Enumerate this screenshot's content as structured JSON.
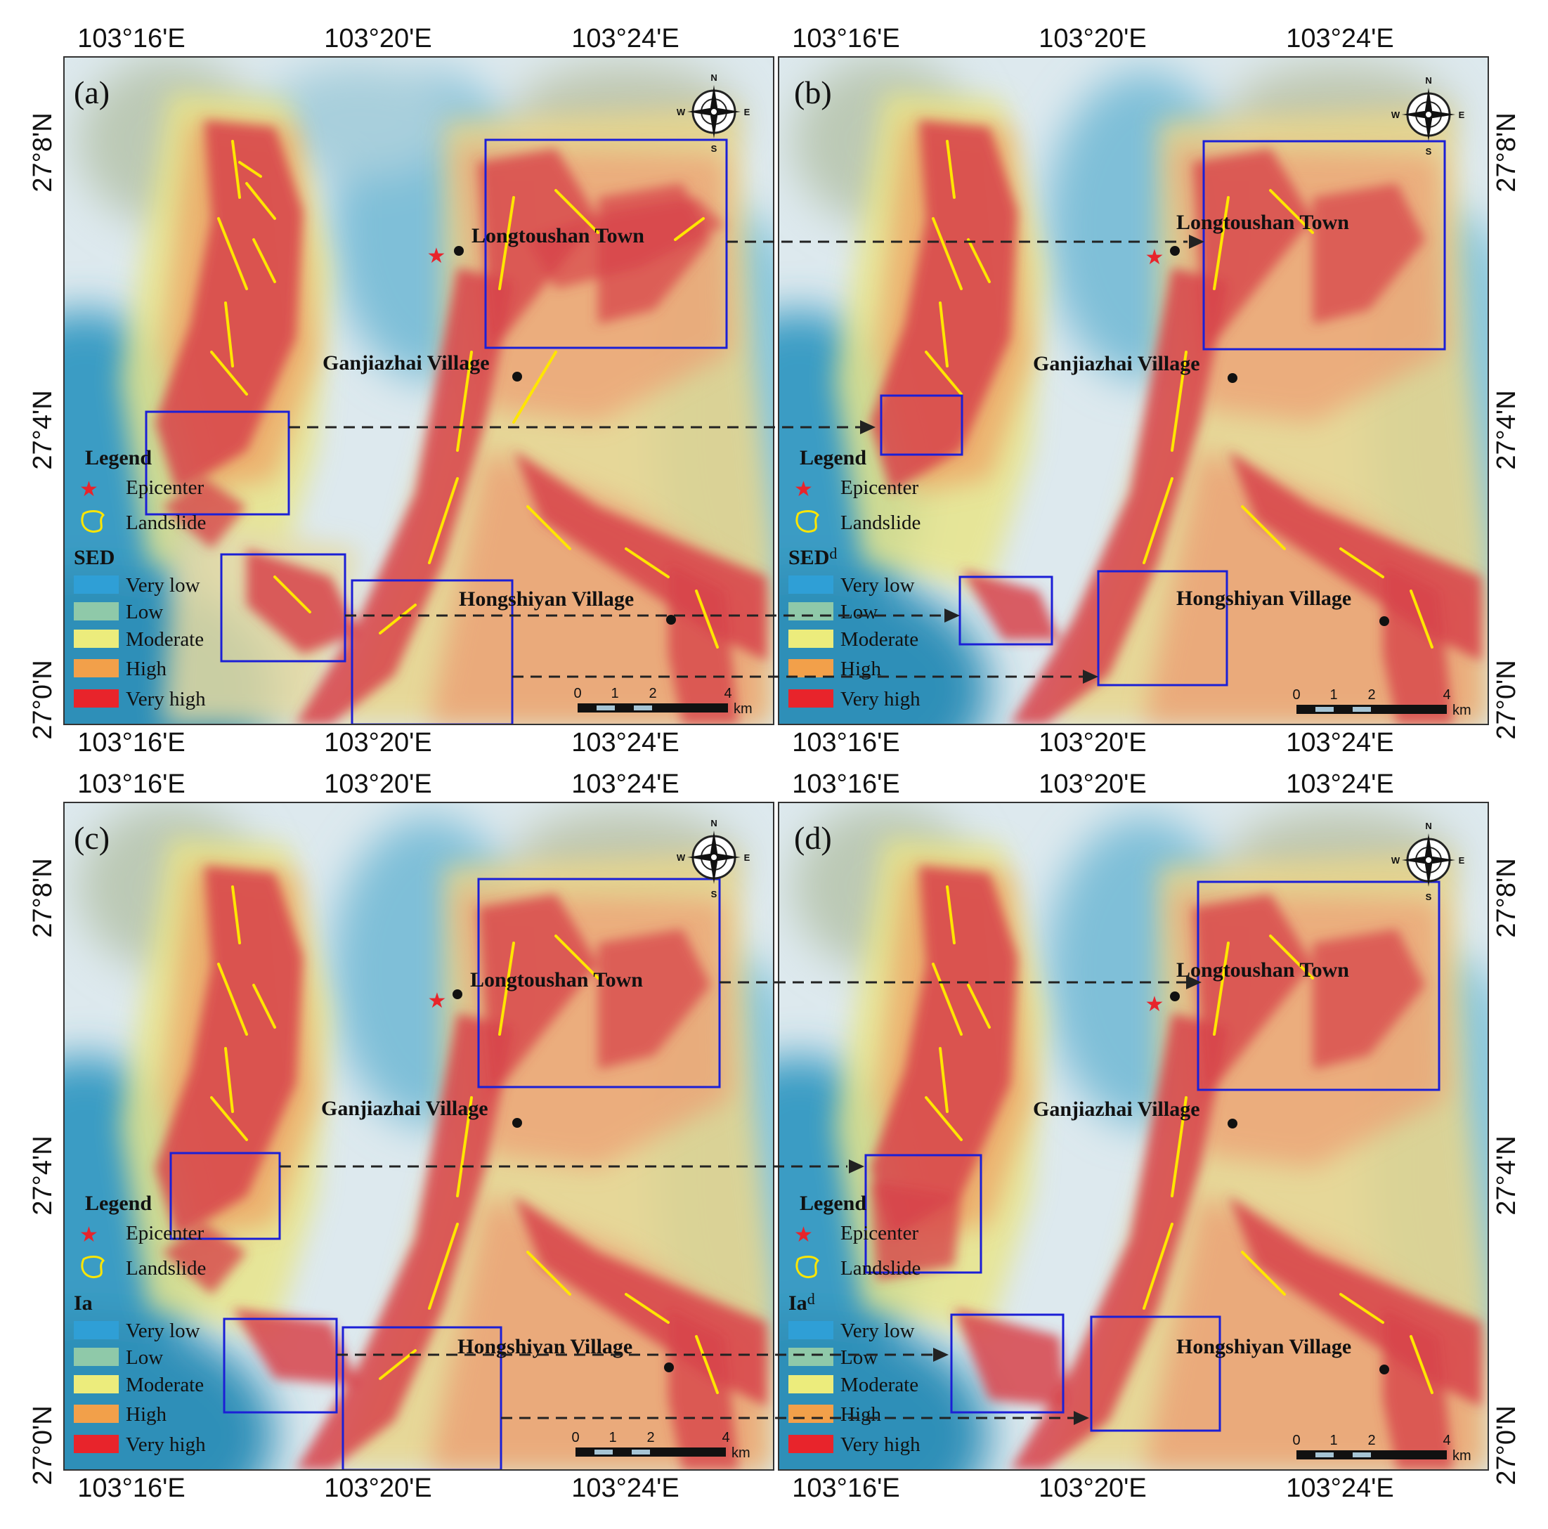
{
  "lon_labels": [
    "103°16'E",
    "103°20'E",
    "103°24'E"
  ],
  "lat_labels": [
    "27°8'N",
    "27°4'N",
    "27°0'N"
  ],
  "legend": {
    "title": "Legend",
    "epicenter": "Epicenter",
    "landslide": "Landslide"
  },
  "classes": [
    {
      "label": "Very low",
      "color": "#2f9fd6"
    },
    {
      "label": "Low",
      "color": "#8fc9a9"
    },
    {
      "label": "Moderate",
      "color": "#ecec7c"
    },
    {
      "label": "High",
      "color": "#f2a04a"
    },
    {
      "label": "Very high",
      "color": "#e8242b"
    }
  ],
  "places": {
    "town": "Longtoushan Town",
    "village1": "Ganjiazhai Village",
    "village2": "Hongshiyan Village"
  },
  "compass": {
    "n": "N",
    "s": "S",
    "e": "E",
    "w": "W"
  },
  "scale": {
    "ticks": [
      "0",
      "1",
      "2",
      "4"
    ],
    "unit": "km"
  },
  "panels": [
    {
      "letter": "(a)",
      "index_name": "SED",
      "index_sup": ""
    },
    {
      "letter": "(b)",
      "index_name": "SED",
      "index_sup": "d"
    },
    {
      "letter": "(c)",
      "index_name": "Ia",
      "index_sup": ""
    },
    {
      "letter": "(d)",
      "index_name": "Ia",
      "index_sup": "d"
    }
  ],
  "colors": {
    "landslide": "#ffe600",
    "epicenter": "#e8242b",
    "focus_box": "#1b1fd6",
    "terrain_low": "#3a9cc4",
    "terrain_pale": "#e3eef2"
  }
}
